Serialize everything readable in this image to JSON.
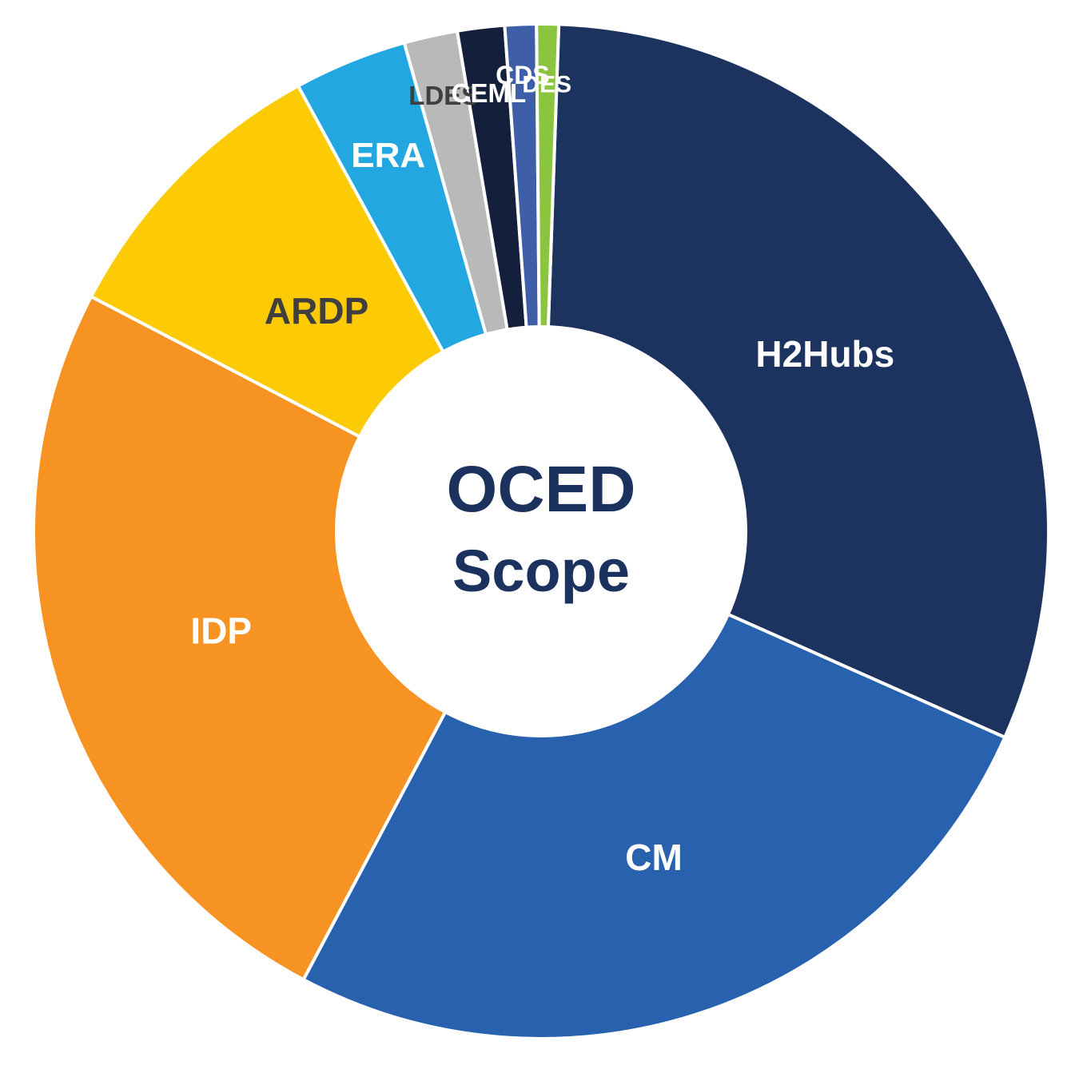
{
  "chart_data": {
    "type": "pie",
    "donut": true,
    "center_text": [
      "OCED",
      "Scope"
    ],
    "center_text_color": "#1c325e",
    "start_angle_deg": 272,
    "direction": "clockwise",
    "slices": [
      {
        "label": "H2Hubs",
        "value": 31.1,
        "color": "#1d335f",
        "label_color": "#ffffff"
      },
      {
        "label": "CM",
        "value": 26.1,
        "color": "#2861ae",
        "label_color": "#ffffff"
      },
      {
        "label": "IDP",
        "value": 24.9,
        "color": "#f69322",
        "label_color": "#ffffff"
      },
      {
        "label": "ARDP",
        "value": 9.4,
        "color": "#fccb06",
        "label_color": "#3f3f3f"
      },
      {
        "label": "ERA",
        "value": 3.6,
        "color": "#23a7e0",
        "label_color": "#ffffff"
      },
      {
        "label": "LDES",
        "value": 1.7,
        "color": "#b9b9b9",
        "label_color": "#3f3f3f"
      },
      {
        "label": "CEML",
        "value": 1.5,
        "color": "#131f3b",
        "label_color": "#ffffff"
      },
      {
        "label": "CDS",
        "value": 1.0,
        "color": "#3e5ea7",
        "label_color": "#ffffff"
      },
      {
        "label": "DES",
        "value": 0.7,
        "color": "#8bc53f",
        "label_color": "#ffffff"
      }
    ]
  }
}
